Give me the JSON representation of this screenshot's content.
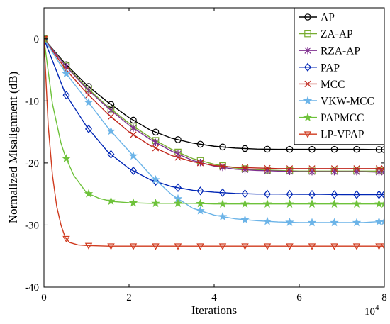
{
  "chart_data": {
    "type": "line",
    "title": "",
    "xlabel": "Iterations",
    "ylabel": "Normalized Misalignment (dB)",
    "x_multiplier_label": "10^4",
    "xlim": [
      0,
      8
    ],
    "ylim": [
      -40,
      5
    ],
    "xticks": [
      0,
      2,
      4,
      6,
      8
    ],
    "yticks": [
      0,
      -10,
      -20,
      -30,
      -40
    ],
    "grid": false,
    "legend_position": "top-right",
    "series": [
      {
        "name": "AP",
        "color": "#000000",
        "marker": "circle",
        "x": [
          0,
          0.5,
          1.0,
          1.5,
          2.0,
          2.5,
          3.0,
          3.5,
          4.0,
          4.5,
          5.0,
          5.5,
          6.0,
          6.5,
          7.0,
          7.5,
          8.0
        ],
        "y": [
          0,
          -4.0,
          -7.4,
          -10.2,
          -12.7,
          -14.7,
          -16.0,
          -16.8,
          -17.3,
          -17.6,
          -17.75,
          -17.8,
          -17.8,
          -17.8,
          -17.8,
          -17.8,
          -17.85
        ]
      },
      {
        "name": "ZA-AP",
        "color": "#77ac30",
        "marker": "square",
        "x": [
          0,
          0.5,
          1.0,
          1.5,
          2.0,
          2.5,
          3.0,
          3.5,
          4.0,
          4.5,
          5.0,
          5.5,
          6.0,
          6.5,
          7.0,
          7.5,
          8.0
        ],
        "y": [
          0,
          -4.2,
          -7.8,
          -10.9,
          -13.6,
          -15.9,
          -17.8,
          -19.3,
          -20.2,
          -20.8,
          -21.1,
          -21.2,
          -21.3,
          -21.3,
          -21.3,
          -21.3,
          -21.3
        ]
      },
      {
        "name": "RZA-AP",
        "color": "#7e2f8e",
        "marker": "asterisk",
        "x": [
          0,
          0.5,
          1.0,
          1.5,
          2.0,
          2.5,
          3.0,
          3.5,
          4.0,
          4.5,
          5.0,
          5.5,
          6.0,
          6.5,
          7.0,
          7.5,
          8.0
        ],
        "y": [
          0,
          -4.3,
          -8.0,
          -11.1,
          -13.9,
          -16.2,
          -18.1,
          -19.6,
          -20.5,
          -21.0,
          -21.2,
          -21.3,
          -21.4,
          -21.4,
          -21.4,
          -21.4,
          -21.5
        ]
      },
      {
        "name": "PAP",
        "color": "#0026b5",
        "marker": "diamond",
        "x": [
          0,
          0.5,
          1.0,
          1.5,
          2.0,
          2.5,
          3.0,
          3.5,
          4.0,
          4.5,
          5.0,
          5.5,
          6.0,
          6.5,
          7.0,
          7.5,
          8.0
        ],
        "y": [
          0,
          -8.8,
          -14.1,
          -18.2,
          -20.9,
          -22.7,
          -23.8,
          -24.4,
          -24.7,
          -24.9,
          -25.0,
          -25.0,
          -25.05,
          -25.05,
          -25.1,
          -25.1,
          -25.1
        ]
      },
      {
        "name": "MCC",
        "color": "#c0261c",
        "marker": "x",
        "x": [
          0,
          0.5,
          1.0,
          1.5,
          2.0,
          2.5,
          3.0,
          3.5,
          4.0,
          4.5,
          5.0,
          5.5,
          6.0,
          6.5,
          7.0,
          7.5,
          8.0
        ],
        "y": [
          0,
          -4.8,
          -8.7,
          -12.1,
          -15.0,
          -17.2,
          -18.8,
          -19.8,
          -20.4,
          -20.7,
          -20.8,
          -20.9,
          -20.9,
          -20.9,
          -20.9,
          -20.9,
          -20.9
        ]
      },
      {
        "name": "VKW-MCC",
        "color": "#6cb4e8",
        "marker": "star",
        "x": [
          0,
          0.5,
          1.0,
          1.5,
          2.0,
          2.5,
          3.0,
          3.5,
          4.0,
          4.5,
          5.0,
          5.5,
          6.0,
          6.5,
          7.0,
          7.5,
          8.0
        ],
        "y": [
          0,
          -5.4,
          -9.8,
          -14.3,
          -18.1,
          -21.9,
          -25.1,
          -27.3,
          -28.4,
          -29.0,
          -29.3,
          -29.5,
          -29.6,
          -29.6,
          -29.6,
          -29.6,
          -29.4
        ]
      },
      {
        "name": "PAPMCC",
        "color": "#6ec23b",
        "marker": "pentagram",
        "x": [
          0,
          0.2,
          0.4,
          0.5,
          0.7,
          1.0,
          1.3,
          1.6,
          2.0,
          2.5,
          3.0,
          3.5,
          4.0,
          4.5,
          5.0,
          5.5,
          6.0,
          6.5,
          7.0,
          7.5,
          8.0
        ],
        "y": [
          0,
          -10.5,
          -16.8,
          -18.9,
          -22.0,
          -24.8,
          -25.7,
          -26.2,
          -26.4,
          -26.5,
          -26.5,
          -26.5,
          -26.6,
          -26.6,
          -26.6,
          -26.6,
          -26.6,
          -26.6,
          -26.6,
          -26.6,
          -26.6
        ]
      },
      {
        "name": "LP-VPAP",
        "color": "#d03b1f",
        "marker": "triangle-down",
        "x": [
          0,
          0.1,
          0.2,
          0.3,
          0.4,
          0.5,
          0.6,
          0.8,
          1.0,
          1.5,
          2.0,
          2.5,
          3.0,
          3.5,
          4.0,
          4.5,
          5.0,
          5.5,
          6.0,
          6.5,
          7.0,
          7.5,
          8.0
        ],
        "y": [
          0,
          -14.0,
          -22.0,
          -27.0,
          -30.0,
          -32.0,
          -32.8,
          -33.2,
          -33.3,
          -33.4,
          -33.4,
          -33.4,
          -33.4,
          -33.4,
          -33.4,
          -33.4,
          -33.4,
          -33.4,
          -33.4,
          -33.4,
          -33.4,
          -33.4,
          -33.4
        ]
      }
    ]
  }
}
